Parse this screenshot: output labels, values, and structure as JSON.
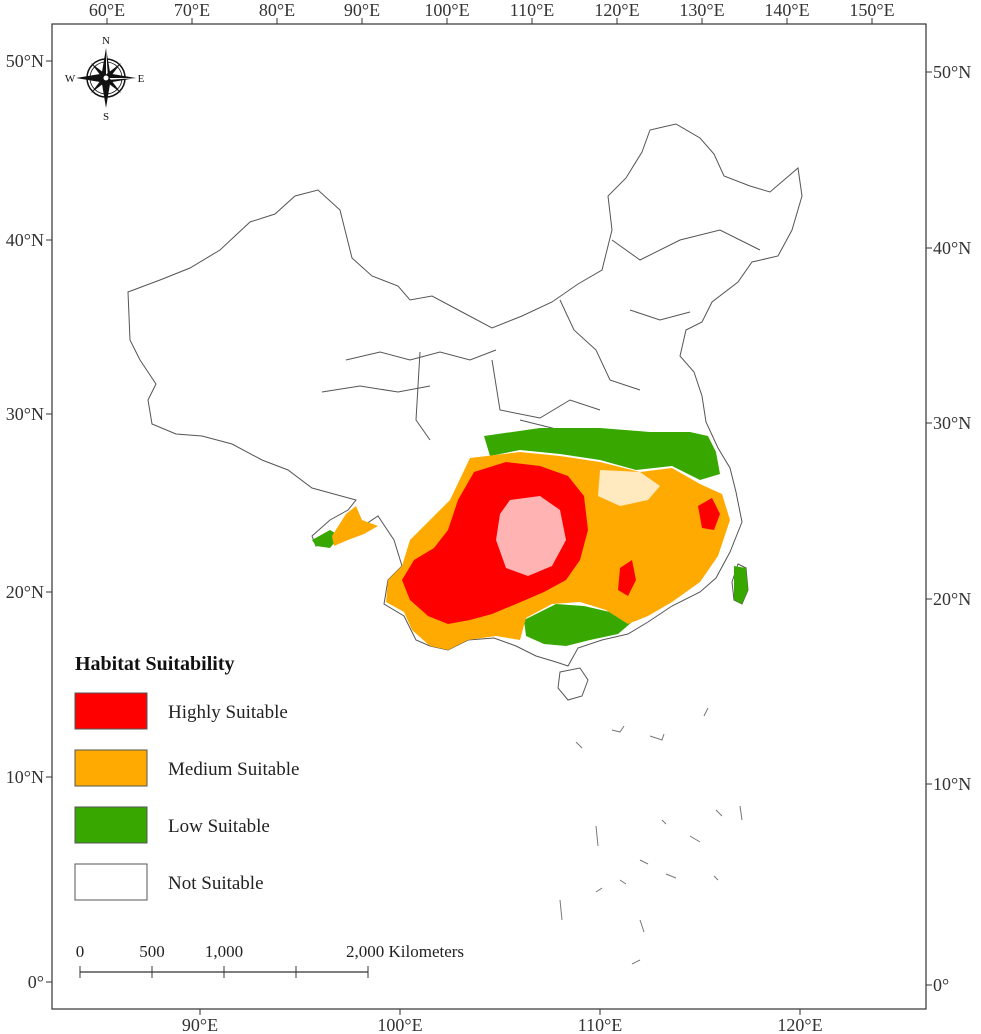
{
  "top_axis": {
    "labels": [
      "60°E",
      "70°E",
      "80°E",
      "90°E",
      "100°E",
      "110°E",
      "120°E",
      "130°E",
      "140°E",
      "150°E"
    ]
  },
  "bottom_axis": {
    "labels": [
      "90°E",
      "100°E",
      "110°E",
      "120°E"
    ]
  },
  "left_axis": {
    "labels": [
      "50°N",
      "40°N",
      "30°N",
      "20°N",
      "10°N",
      "0°"
    ]
  },
  "right_axis": {
    "labels": [
      "50°N",
      "40°N",
      "30°N",
      "20°N",
      "10°N",
      "0°"
    ]
  },
  "compass": {
    "north": "N",
    "south": "S",
    "east": "E",
    "west": "W"
  },
  "legend": {
    "title": "Habitat Suitability",
    "items": [
      {
        "label": "Highly Suitable",
        "color": "#ff0000"
      },
      {
        "label": "Medium Suitable",
        "color": "#ffaa00"
      },
      {
        "label": "Low Suitable",
        "color": "#38a800"
      },
      {
        "label": "Not Suitable",
        "color": "#ffffff"
      }
    ]
  },
  "scale_bar": {
    "labels": [
      "0",
      "500",
      "1,000",
      "2,000 Kilometers"
    ]
  }
}
